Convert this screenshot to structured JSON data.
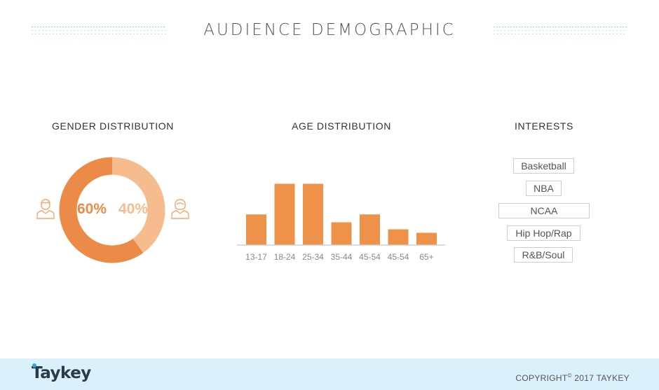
{
  "header": {
    "title": "AUDIENCE DEMOGRAPHIC"
  },
  "gender": {
    "title": "GENDER DISTRIBUTION",
    "male_label": "60%",
    "female_label": "40%",
    "male_color": "#ec8b47",
    "female_color": "#f6bc8e"
  },
  "age": {
    "title": "AGE DISTRIBUTION"
  },
  "interests": {
    "title": "INTERESTS",
    "items": [
      "Basketball",
      "NBA",
      "NCAA",
      "Hip Hop/Rap",
      "R&B/Soul"
    ]
  },
  "footer": {
    "logo": "Taykey",
    "copyright_prefix": "COPYRIGHT",
    "copyright_mark": "©",
    "copyright_suffix": " 2017 TAYKEY"
  },
  "chart_data": [
    {
      "type": "pie",
      "title": "GENDER DISTRIBUTION",
      "labels": [
        "Male",
        "Female"
      ],
      "values": [
        60,
        40
      ],
      "data_labels": [
        "60%",
        "40%"
      ],
      "colors": [
        "#ec8b47",
        "#f6bc8e"
      ],
      "style": "donut"
    },
    {
      "type": "bar",
      "title": "AGE DISTRIBUTION",
      "categories": [
        "13-17",
        "18-24",
        "25-34",
        "35-44",
        "45-54",
        "45-54",
        "65+"
      ],
      "values": [
        35,
        70,
        70,
        26,
        35,
        18,
        14
      ],
      "color": "#ee9149",
      "ylim": [
        0,
        80
      ],
      "grid": false,
      "legend": "none"
    }
  ],
  "icons": {
    "male": "male-user-icon",
    "female": "female-user-icon"
  }
}
